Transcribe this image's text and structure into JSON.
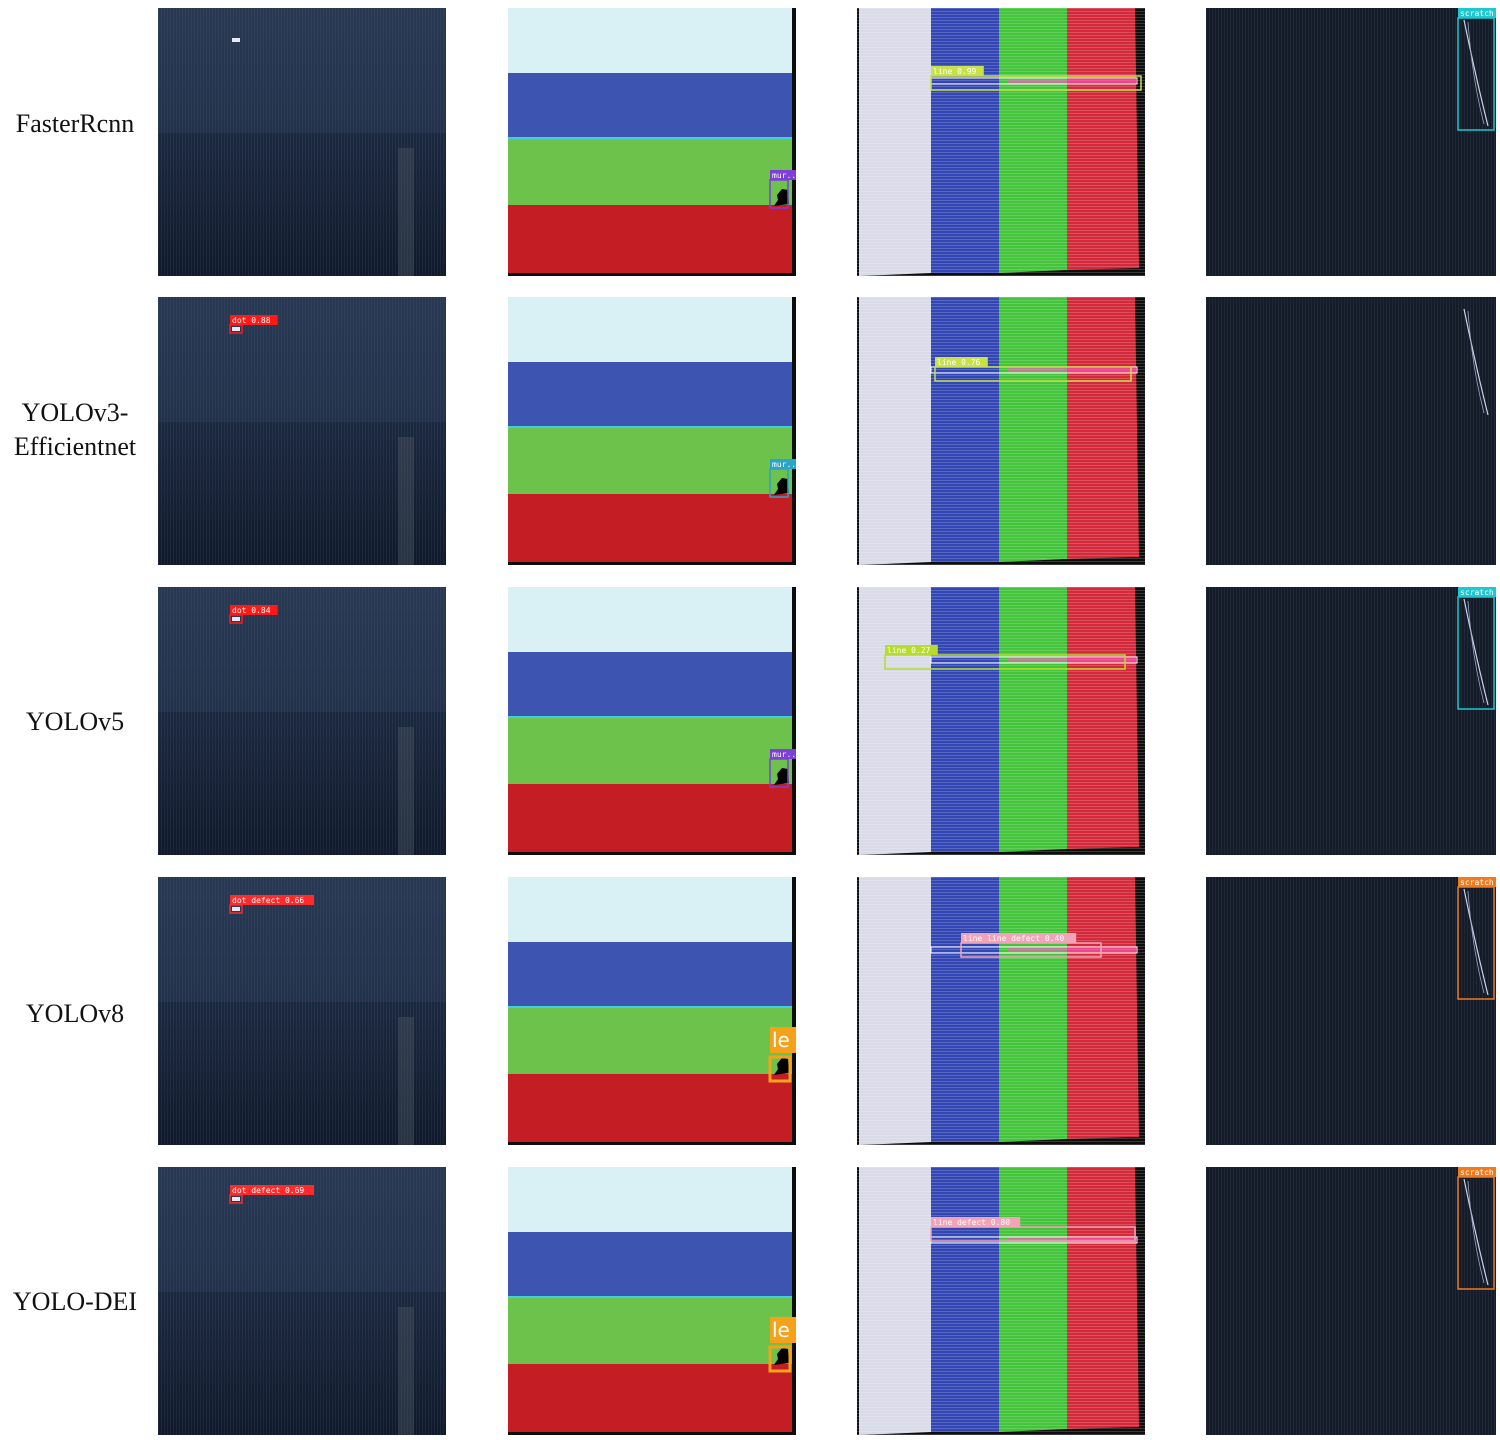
{
  "rows": [
    {
      "label": "FasterRcnn",
      "dot": null,
      "mura": {
        "text": "mur..",
        "color": "#7d3fd6"
      },
      "line": {
        "text": "line 0.99",
        "color": "#c8e04a"
      },
      "scratch": {
        "text": "scratch",
        "color": "#1ec8d0"
      }
    },
    {
      "label": "YOLOv3-\nEfficientnet",
      "dot": {
        "text": "dot 0.88",
        "color": "#ff1a1a"
      },
      "mura": {
        "text": "mur..",
        "color": "#2aa5c8"
      },
      "line": {
        "text": "line 0.76",
        "color": "#c8e04a"
      },
      "scratch": null
    },
    {
      "label": "YOLOv5",
      "dot": {
        "text": "dot 0.84",
        "color": "#ff1a1a"
      },
      "mura": {
        "text": "mur..",
        "color": "#7d3fd6"
      },
      "line": {
        "text": "line 0.27",
        "color": "#b6dc2e"
      },
      "scratch": {
        "text": "scratch",
        "color": "#1ec8d0"
      }
    },
    {
      "label": "YOLOv8",
      "dot": {
        "text": "dot defect 0.66",
        "color": "#ff2a2a"
      },
      "mura": {
        "text": "le",
        "color": "#f5a21a"
      },
      "line": {
        "text": "line line defect 0.40",
        "color": "#f2a3b8"
      },
      "scratch": {
        "text": "scratch",
        "color": "#f07a1e"
      }
    },
    {
      "label": "YOLO-DEI",
      "dot": {
        "text": "dot defect 0.69",
        "color": "#ff2a2a"
      },
      "mura": {
        "text": "le",
        "color": "#f5a21a"
      },
      "line": {
        "text": "line defect 0.80",
        "color": "#f2a3b8"
      },
      "scratch": {
        "text": "scratch",
        "color": "#f07a1e"
      }
    }
  ],
  "colors": {
    "panel_dark_top": "#22314a",
    "panel_dark_bottom": "#101a2c",
    "bar_white": "#d9f0f4",
    "bar_blue": "#3d55b0",
    "bar_green": "#6cc24a",
    "bar_red": "#c41e24",
    "stripe_gray": "#d9dbe8",
    "stripe_blue": "#3347b4",
    "stripe_green": "#43c43a",
    "stripe_red": "#d3293a"
  }
}
